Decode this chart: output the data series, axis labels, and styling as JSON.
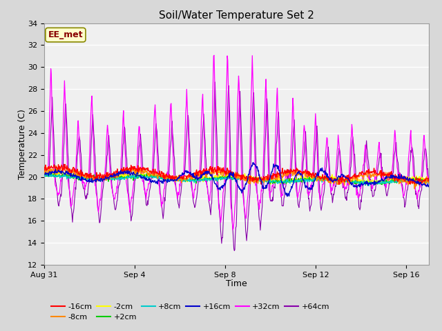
{
  "title": "Soil/Water Temperature Set 2",
  "xlabel": "Time",
  "ylabel": "Temperature (C)",
  "ylim": [
    12,
    34
  ],
  "yticks": [
    12,
    14,
    16,
    18,
    20,
    22,
    24,
    26,
    28,
    30,
    32,
    34
  ],
  "xtick_positions": [
    0,
    4,
    8,
    12,
    16
  ],
  "xtick_labels": [
    "Aug 31",
    "Sep 4",
    "Sep 8",
    "Sep 12",
    "Sep 16"
  ],
  "xlim": [
    0,
    17
  ],
  "legend_label": "EE_met",
  "series_colors": {
    "-16cm": "#ff0000",
    "-8cm": "#ff8800",
    "-2cm": "#ffff00",
    "+2cm": "#00cc00",
    "+8cm": "#00cccc",
    "+16cm": "#0000cc",
    "+32cm": "#ff00ff",
    "+64cm": "#8800aa"
  },
  "fig_facecolor": "#d8d8d8",
  "ax_facecolor": "#f0f0f0",
  "grid_color": "#ffffff",
  "annotation_box_facecolor": "#ffffcc",
  "annotation_text_color": "#880000",
  "annotation_edge_color": "#888800",
  "title_fontsize": 11,
  "axis_label_fontsize": 9,
  "tick_fontsize": 8,
  "legend_fontsize": 8
}
